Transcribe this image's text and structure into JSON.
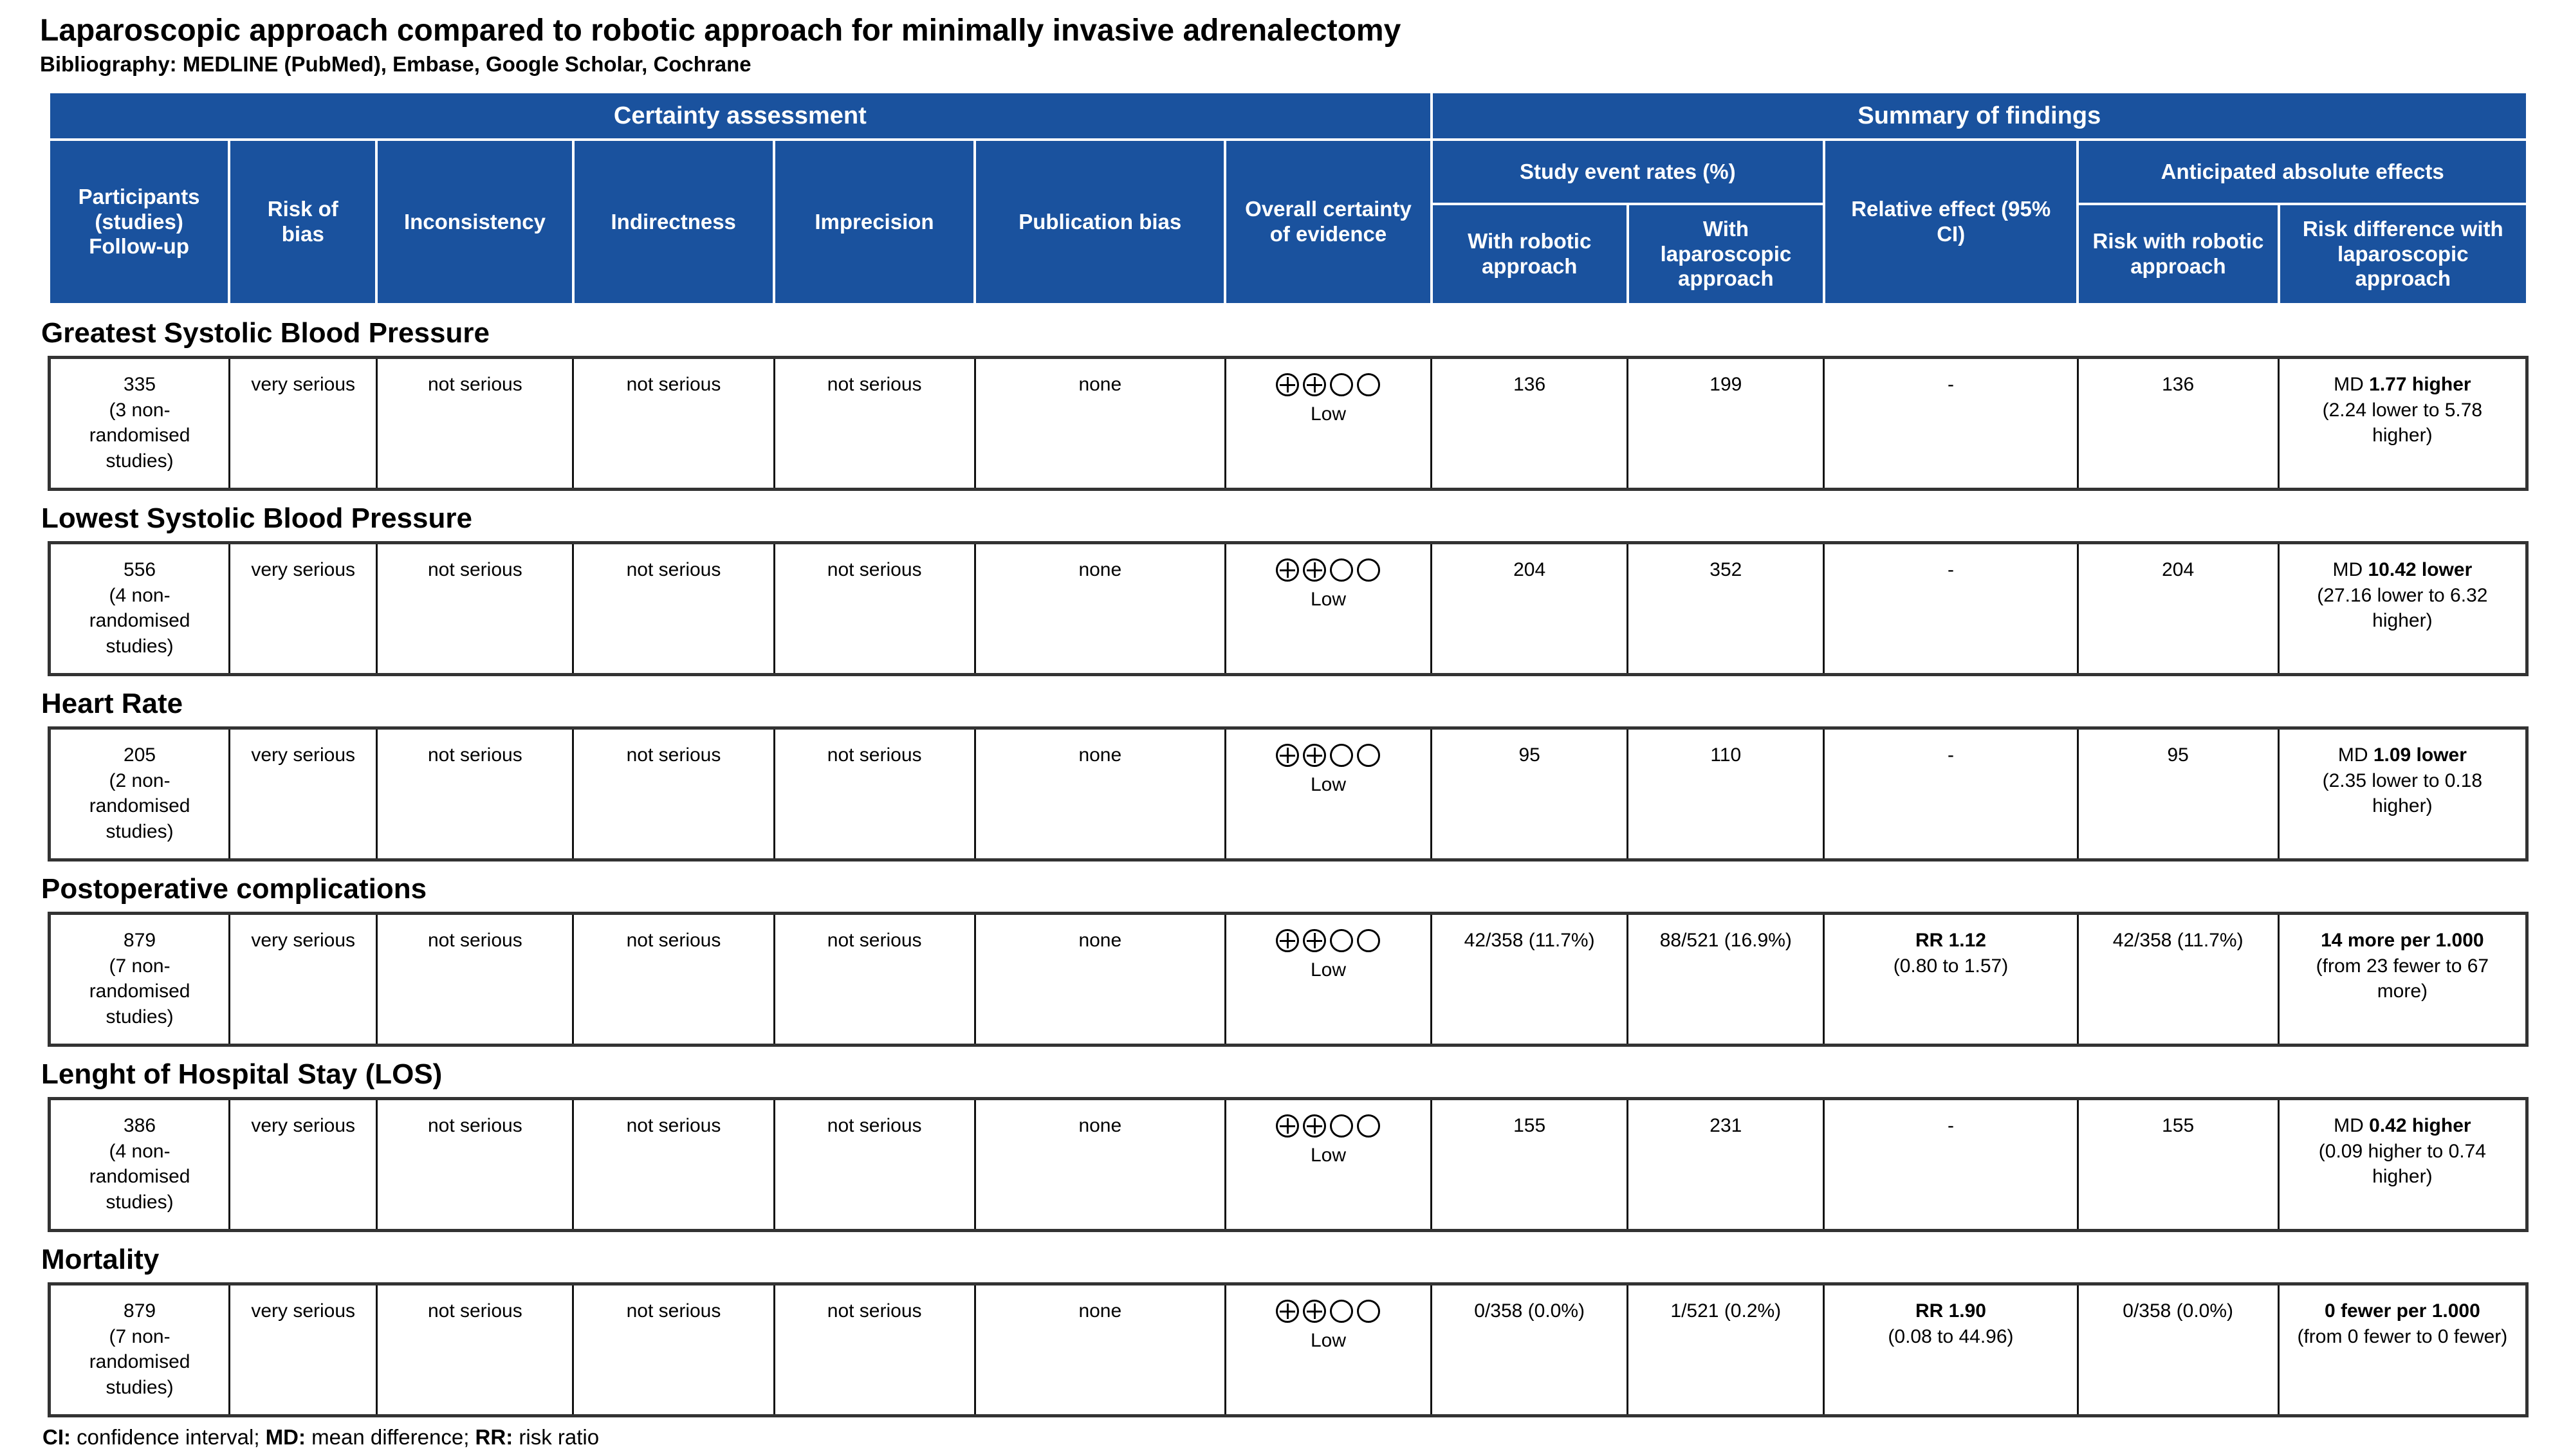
{
  "title": "Laparoscopic approach compared to robotic approach for minimally invasive adrenalectomy",
  "bibliography": "Bibliography: MEDLINE (PubMed), Embase, Google Scholar, Cochrane",
  "colors": {
    "header_blue": "#1a529e",
    "border_dark": "#333333"
  },
  "header": {
    "certainty_assessment": "Certainty assessment",
    "summary_of_findings": "Summary of findings",
    "participants": "Participants (studies) Follow-up",
    "risk_of_bias": "Risk of bias",
    "inconsistency": "Inconsistency",
    "indirectness": "Indirectness",
    "imprecision": "Imprecision",
    "publication_bias": "Publication bias",
    "overall_certainty": "Overall certainty of evidence",
    "study_event_rates": "Study event rates (%)",
    "relative_effect": "Relative effect (95% CI)",
    "with_robotic": "With robotic approach",
    "with_laparoscopic": "With laparoscopic approach",
    "anticipated_effects": "Anticipated absolute effects",
    "risk_with_robotic": "Risk with robotic approach",
    "risk_difference": "Risk difference with laparoscopic approach"
  },
  "outcomes": [
    {
      "name": "Greatest Systolic Blood Pressure",
      "participants_count": "335",
      "participants_studies": "(3 non-randomised studies)",
      "risk_of_bias": "very serious",
      "inconsistency": "not serious",
      "indirectness": "not serious",
      "imprecision": "not serious",
      "publication_bias": "none",
      "certainty_icons": [
        "plus-circle",
        "plus-circle",
        "empty-circle",
        "empty-circle"
      ],
      "certainty_label": "Low",
      "with_robotic": "136",
      "with_laparoscopic": "199",
      "relative_effect_bold": "",
      "relative_effect_plain": "-",
      "risk_with_robotic": "136",
      "risk_diff_prefix": "MD ",
      "risk_diff_bold": "1.77 higher",
      "risk_diff_plain": "(2.24 lower to 5.78 higher)"
    },
    {
      "name": "Lowest Systolic Blood Pressure",
      "participants_count": "556",
      "participants_studies": "(4 non-randomised studies)",
      "risk_of_bias": "very serious",
      "inconsistency": "not serious",
      "indirectness": "not serious",
      "imprecision": "not serious",
      "publication_bias": "none",
      "certainty_icons": [
        "plus-circle",
        "plus-circle",
        "empty-circle",
        "empty-circle"
      ],
      "certainty_label": "Low",
      "with_robotic": "204",
      "with_laparoscopic": "352",
      "relative_effect_bold": "",
      "relative_effect_plain": "-",
      "risk_with_robotic": "204",
      "risk_diff_prefix": "MD ",
      "risk_diff_bold": "10.42 lower",
      "risk_diff_plain": "(27.16 lower to 6.32 higher)"
    },
    {
      "name": "Heart Rate",
      "participants_count": "205",
      "participants_studies": "(2 non-randomised studies)",
      "risk_of_bias": "very serious",
      "inconsistency": "not serious",
      "indirectness": "not serious",
      "imprecision": "not serious",
      "publication_bias": "none",
      "certainty_icons": [
        "plus-circle",
        "plus-circle",
        "empty-circle",
        "empty-circle"
      ],
      "certainty_label": "Low",
      "with_robotic": "95",
      "with_laparoscopic": "110",
      "relative_effect_bold": "",
      "relative_effect_plain": "-",
      "risk_with_robotic": "95",
      "risk_diff_prefix": "MD ",
      "risk_diff_bold": "1.09 lower",
      "risk_diff_plain": "(2.35 lower to 0.18 higher)"
    },
    {
      "name": "Postoperative complications",
      "participants_count": "879",
      "participants_studies": "(7 non-randomised studies)",
      "risk_of_bias": "very serious",
      "inconsistency": "not serious",
      "indirectness": "not serious",
      "imprecision": "not serious",
      "publication_bias": "none",
      "certainty_icons": [
        "plus-circle",
        "plus-circle",
        "empty-circle",
        "empty-circle"
      ],
      "certainty_label": "Low",
      "with_robotic": "42/358 (11.7%)",
      "with_laparoscopic": "88/521 (16.9%)",
      "relative_effect_bold": "RR 1.12",
      "relative_effect_plain": "(0.80 to 1.57)",
      "risk_with_robotic": "42/358 (11.7%)",
      "risk_diff_prefix": "",
      "risk_diff_bold": "14 more per 1.000",
      "risk_diff_plain": "(from 23 fewer to 67 more)"
    },
    {
      "name": "Lenght of Hospital Stay (LOS)",
      "participants_count": "386",
      "participants_studies": "(4 non-randomised studies)",
      "risk_of_bias": "very serious",
      "inconsistency": "not serious",
      "indirectness": "not serious",
      "imprecision": "not serious",
      "publication_bias": "none",
      "certainty_icons": [
        "plus-circle",
        "plus-circle",
        "empty-circle",
        "empty-circle"
      ],
      "certainty_label": "Low",
      "with_robotic": "155",
      "with_laparoscopic": "231",
      "relative_effect_bold": "",
      "relative_effect_plain": "-",
      "risk_with_robotic": "155",
      "risk_diff_prefix": "MD ",
      "risk_diff_bold": "0.42 higher",
      "risk_diff_plain": "(0.09 higher to 0.74 higher)"
    },
    {
      "name": "Mortality",
      "participants_count": "879",
      "participants_studies": "(7 non-randomised studies)",
      "risk_of_bias": "very serious",
      "inconsistency": "not serious",
      "indirectness": "not serious",
      "imprecision": "not serious",
      "publication_bias": "none",
      "certainty_icons": [
        "plus-circle",
        "plus-circle",
        "empty-circle",
        "empty-circle"
      ],
      "certainty_label": "Low",
      "with_robotic": "0/358 (0.0%)",
      "with_laparoscopic": "1/521 (0.2%)",
      "relative_effect_bold": "RR 1.90",
      "relative_effect_plain": "(0.08 to 44.96)",
      "risk_with_robotic": "0/358 (0.0%)",
      "risk_diff_prefix": "",
      "risk_diff_bold": "0 fewer per 1.000",
      "risk_diff_plain": "(from 0 fewer to 0 fewer)"
    }
  ],
  "footnote": [
    {
      "label": "CI:",
      "text": " confidence interval; "
    },
    {
      "label": "MD:",
      "text": " mean difference; "
    },
    {
      "label": "RR:",
      "text": " risk ratio"
    }
  ]
}
